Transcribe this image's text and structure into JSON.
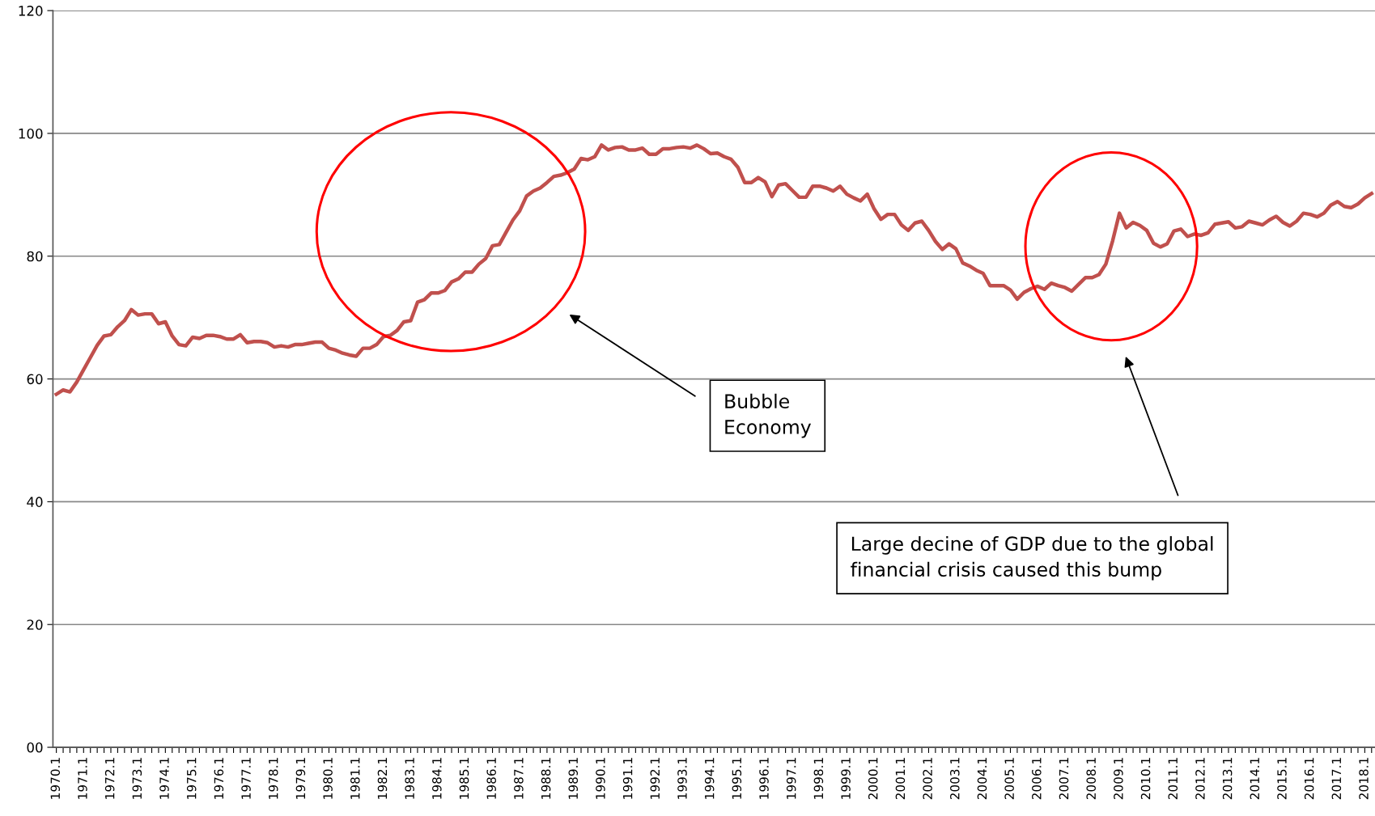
{
  "chart_data": {
    "type": "line",
    "categories": [
      "1970.1",
      null,
      null,
      null,
      "1971.1",
      null,
      null,
      null,
      "1972.1",
      null,
      null,
      null,
      "1973.1",
      null,
      null,
      null,
      "1974.1",
      null,
      null,
      null,
      "1975.1",
      null,
      null,
      null,
      "1976.1",
      null,
      null,
      null,
      "1977.1",
      null,
      null,
      null,
      "1978.1",
      null,
      null,
      null,
      "1979.1",
      null,
      null,
      null,
      "1980.1",
      null,
      null,
      null,
      "1981.1",
      null,
      null,
      null,
      "1982.1",
      null,
      null,
      null,
      "1983.1",
      null,
      null,
      null,
      "1984.1",
      null,
      null,
      null,
      "1985.1",
      null,
      null,
      null,
      "1986.1",
      null,
      null,
      null,
      "1987.1",
      null,
      null,
      null,
      "1988.1",
      null,
      null,
      null,
      "1989.1",
      null,
      null,
      null,
      "1990.1",
      null,
      null,
      null,
      "1991.1",
      null,
      null,
      null,
      "1992.1",
      null,
      null,
      null,
      "1993.1",
      null,
      null,
      null,
      "1994.1",
      null,
      null,
      null,
      "1995.1",
      null,
      null,
      null,
      "1996.1",
      null,
      null,
      null,
      "1997.1",
      null,
      null,
      null,
      "1998.1",
      null,
      null,
      null,
      "1999.1",
      null,
      null,
      null,
      "2000.1",
      null,
      null,
      null,
      "2001.1",
      null,
      null,
      null,
      "2002.1",
      null,
      null,
      null,
      "2003.1",
      null,
      null,
      null,
      "2004.1",
      null,
      null,
      null,
      "2005.1",
      null,
      null,
      null,
      "2006.1",
      null,
      null,
      null,
      "2007.1",
      null,
      null,
      null,
      "2008.1",
      null,
      null,
      null,
      "2009.1",
      null,
      null,
      null,
      "2010.1",
      null,
      null,
      null,
      "2011.1",
      null,
      null,
      null,
      "2012.1",
      null,
      null,
      null,
      "2013.1",
      null,
      null,
      null,
      "2014.1",
      null,
      null,
      null,
      "2015.1",
      null,
      null,
      null,
      "2016.1",
      null,
      null,
      null,
      "2017.1",
      null,
      null,
      null,
      "2018.1",
      null
    ],
    "series": [
      {
        "color": "#c0504d",
        "values": [
          57.5,
          58.2,
          57.9,
          59.5,
          61.5,
          63.5,
          65.5,
          67,
          67.2,
          68.5,
          69.5,
          71.3,
          70.4,
          70.6,
          70.6,
          69,
          69.3,
          67,
          65.6,
          65.4,
          66.8,
          66.6,
          67.1,
          67.1,
          66.9,
          66.5,
          66.5,
          67.2,
          65.9,
          66.1,
          66.1,
          65.9,
          65.2,
          65.4,
          65.2,
          65.6,
          65.6,
          65.8,
          66,
          66,
          65,
          64.7,
          64.2,
          63.9,
          63.7,
          65,
          65,
          65.6,
          66.9,
          67.1,
          67.9,
          69.3,
          69.5,
          72.5,
          72.9,
          74,
          74,
          74.4,
          75.8,
          76.3,
          77.4,
          77.4,
          78.7,
          79.6,
          81.7,
          81.9,
          83.9,
          85.9,
          87.4,
          89.8,
          90.6,
          91.1,
          92,
          93,
          93.2,
          93.6,
          94.2,
          95.9,
          95.7,
          96.2,
          98.1,
          97.3,
          97.7,
          97.8,
          97.3,
          97.3,
          97.6,
          96.6,
          96.6,
          97.5,
          97.5,
          97.7,
          97.8,
          97.6,
          98.1,
          97.5,
          96.7,
          96.8,
          96.2,
          95.8,
          94.5,
          92,
          92,
          92.8,
          92.1,
          89.7,
          91.6,
          91.8,
          90.7,
          89.6,
          89.6,
          91.4,
          91.4,
          91.1,
          90.6,
          91.4,
          90.1,
          89.5,
          89,
          90.1,
          87.7,
          86,
          86.8,
          86.8,
          85.1,
          84.2,
          85.4,
          85.7,
          84.2,
          82.4,
          81.1,
          82,
          81.2,
          78.9,
          78.4,
          77.7,
          77.2,
          75.2,
          75.2,
          75.2,
          74.5,
          73,
          74.1,
          74.7,
          75.1,
          74.6,
          75.6,
          75.2,
          74.9,
          74.3,
          75.4,
          76.5,
          76.5,
          77,
          78.7,
          82.5,
          87,
          84.6,
          85.5,
          85,
          84.2,
          82.1,
          81.5,
          82,
          84.1,
          84.4,
          83.2,
          83.6,
          83.4,
          83.8,
          85.2,
          85.4,
          85.6,
          84.6,
          84.8,
          85.7,
          85.4,
          85.1,
          85.9,
          86.5,
          85.5,
          84.9,
          85.7,
          87,
          86.8,
          86.4,
          87,
          88.3,
          88.9,
          88.1,
          87.9,
          88.5,
          89.5,
          90.2
        ]
      }
    ],
    "ylim": [
      0,
      120
    ],
    "yticks": [
      {
        "value": 0,
        "label": "00"
      },
      20,
      40,
      60,
      80,
      100,
      120
    ],
    "grid": "y",
    "legend": false,
    "marker": "none",
    "line_style": "solid",
    "annotations": [
      "Bubble\nEconomy",
      "Large decine of GDP due to the global\nfinancial crisis caused this bump"
    ]
  }
}
